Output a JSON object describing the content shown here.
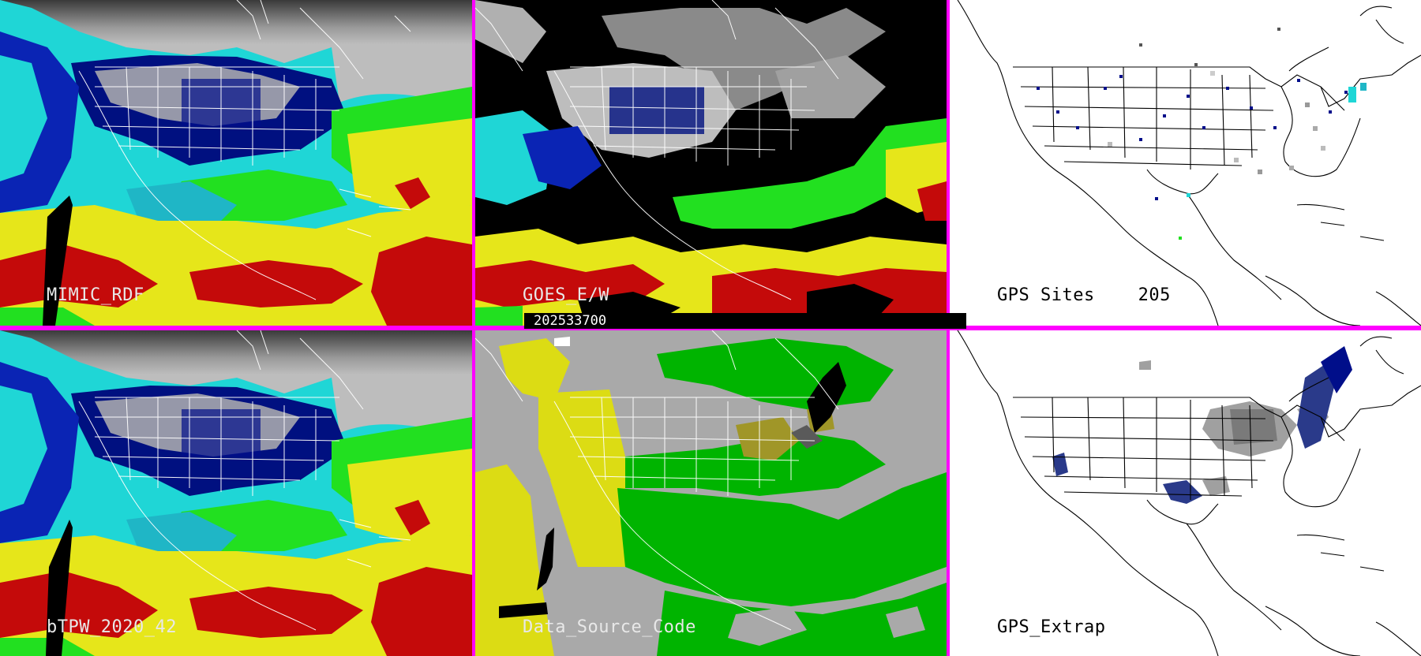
{
  "panels": [
    {
      "id": "p1",
      "label": "MIMIC_RDF",
      "style": "satellite"
    },
    {
      "id": "p2",
      "label": "GOES_E/W",
      "style": "goes"
    },
    {
      "id": "p3",
      "label": "GPS Sites    205",
      "style": "gps-sites"
    },
    {
      "id": "p4",
      "label": "bTPW_2020_42",
      "style": "satellite"
    },
    {
      "id": "p5",
      "label": "Data_Source_Code",
      "style": "source"
    },
    {
      "id": "p6",
      "label": "GPS_Extrap",
      "style": "gps-extrap"
    }
  ],
  "timestamp": "202533700",
  "colors": {
    "border": "#ff00ff",
    "ocean_cyan": "#1fd6d6",
    "deep_blue": "#000e8a",
    "green": "#22e020",
    "yellow": "#e6e61a",
    "red": "#c40a0a",
    "gray_land": "#a9a9a9",
    "source_green": "#00b400",
    "source_yellow": "#dcdc14",
    "olive": "#a09628"
  }
}
